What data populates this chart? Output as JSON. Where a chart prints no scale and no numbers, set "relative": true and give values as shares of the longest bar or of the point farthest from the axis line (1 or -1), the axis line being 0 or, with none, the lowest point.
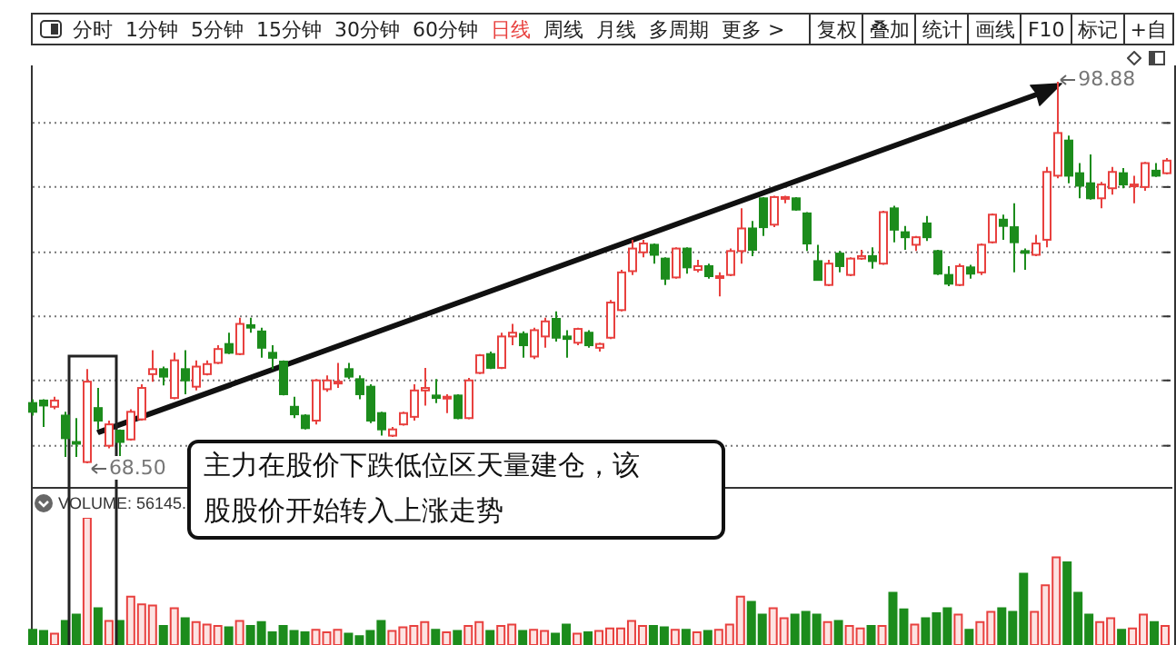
{
  "chart_data": [
    {
      "type": "other",
      "annotations": [
        "分时",
        "1分钟",
        "5分钟",
        "15分钟",
        "30分钟",
        "60分钟",
        "日线",
        "周线",
        "月线",
        "多周期",
        "更多 >",
        "复权",
        "叠加",
        "统计",
        "画线",
        "F10",
        "标记",
        "+自"
      ]
    },
    {
      "type": "candlestick",
      "grid": "y",
      "annotations": [
        "主力在股价下跌低位区天量建仓，该股股价开始转入上涨走势",
        "68.50",
        "98.88"
      ],
      "yticks": [
        {
          "value": 69.9,
          "label": null
        },
        {
          "value": 75.1,
          "label": null
        },
        {
          "value": 80.2,
          "label": null
        },
        {
          "value": 85.3,
          "label": null
        },
        {
          "value": 90.5,
          "label": null
        },
        {
          "value": 95.6,
          "label": null
        }
      ],
      "categories": [
        null,
        null,
        null,
        null,
        null,
        null,
        null,
        null,
        null,
        null,
        null,
        null,
        null,
        null,
        null,
        null,
        null,
        null,
        null,
        null,
        null,
        null,
        null,
        null,
        null,
        null,
        null,
        null,
        null,
        null,
        null,
        null,
        null,
        null,
        null,
        null,
        null,
        null,
        null,
        null,
        null,
        null,
        null,
        null,
        null,
        null,
        null,
        null,
        null,
        null,
        null,
        null,
        null,
        null,
        null,
        null,
        null,
        null,
        null,
        null,
        null,
        null,
        null,
        null,
        null,
        null,
        null,
        null,
        null,
        null,
        null,
        null,
        null,
        null,
        null,
        null,
        null,
        null,
        null,
        null,
        null,
        null,
        null,
        null,
        null,
        null,
        null,
        null,
        null,
        null,
        null,
        null,
        null,
        null,
        null,
        null,
        null,
        null,
        null,
        null,
        null,
        null,
        null,
        null,
        null
      ],
      "colors": [
        "#1c8c1c",
        "#1c8c1c",
        "#e8413f",
        "#1c8c1c",
        "#1c8c1c",
        "#e8413f",
        "#1c8c1c",
        "#e8413f",
        "#1c8c1c",
        "#e8413f",
        "#e8413f",
        "#e8413f",
        "#1c8c1c",
        "#e8413f",
        "#1c8c1c",
        "#e8413f",
        "#e8413f",
        "#e8413f",
        "#1c8c1c",
        "#e8413f",
        "#1c8c1c",
        "#1c8c1c",
        "#1c8c1c",
        "#1c8c1c",
        "#1c8c1c",
        "#1c8c1c",
        "#e8413f",
        "#e8413f",
        "#e8413f",
        "#1c8c1c",
        "#1c8c1c",
        "#1c8c1c",
        "#1c8c1c",
        "#e8413f",
        "#e8413f",
        "#e8413f",
        "#e8413f",
        "#1c8c1c",
        "#e8413f",
        "#1c8c1c",
        "#e8413f",
        "#e8413f",
        "#1c8c1c",
        "#e8413f",
        "#e8413f",
        "#1c8c1c",
        "#e8413f",
        "#e8413f",
        "#1c8c1c",
        "#1c8c1c",
        "#e8413f",
        "#1c8c1c",
        "#e8413f",
        "#e8413f",
        "#e8413f",
        "#e8413f",
        "#e8413f",
        "#1c8c1c",
        "#1c8c1c",
        "#e8413f",
        "#1c8c1c",
        "#e8413f",
        "#1c8c1c",
        "#e8413f",
        "#e8413f",
        "#e8413f",
        "#1c8c1c",
        "#1c8c1c",
        "#e8413f",
        "#e8413f",
        "#1c8c1c",
        "#1c8c1c",
        "#1c8c1c",
        "#e8413f",
        "#1c8c1c",
        "#e8413f",
        "#e8413f",
        "#1c8c1c",
        "#e8413f",
        "#1c8c1c",
        "#1c8c1c",
        "#e8413f",
        "#1c8c1c",
        "#1c8c1c",
        "#1c8c1c",
        "#e8413f",
        "#1c8c1c",
        "#e8413f",
        "#e8413f",
        "#1c8c1c",
        "#1c8c1c",
        "#1c8c1c",
        "#e8413f",
        "#e8413f",
        "#e8413f",
        "#1c8c1c",
        "#1c8c1c",
        "#1c8c1c",
        "#e8413f",
        "#e8413f",
        "#1c8c1c",
        "#e8413f",
        "#e8413f",
        "#1c8c1c",
        "#e8413f"
      ],
      "ohlc": [
        [
          73.3,
          73.6,
          72.3,
          72.6
        ],
        [
          73.5,
          73.6,
          71.4,
          73.1
        ],
        [
          73.0,
          73.8,
          72.8,
          73.5
        ],
        [
          72.3,
          72.6,
          69.0,
          70.5
        ],
        [
          70.2,
          72.1,
          69.0,
          70.1
        ],
        [
          68.6,
          76.0,
          68.5,
          75.0
        ],
        [
          72.9,
          74.5,
          71.2,
          71.9
        ],
        [
          69.9,
          71.9,
          69.7,
          71.6
        ],
        [
          71.1,
          71.2,
          68.7,
          70.2
        ],
        [
          70.4,
          72.8,
          70.3,
          72.6
        ],
        [
          72.0,
          74.8,
          71.9,
          74.5
        ],
        [
          75.6,
          77.5,
          75.0,
          76.0
        ],
        [
          76.0,
          76.2,
          74.7,
          75.4
        ],
        [
          73.7,
          77.3,
          73.6,
          76.7
        ],
        [
          76.0,
          77.5,
          74.0,
          75.1
        ],
        [
          74.6,
          76.7,
          74.3,
          76.2
        ],
        [
          75.6,
          76.7,
          75.5,
          76.4
        ],
        [
          76.5,
          77.9,
          76.4,
          77.6
        ],
        [
          78.0,
          78.9,
          77.2,
          77.3
        ],
        [
          77.2,
          80.1,
          77.1,
          79.6
        ],
        [
          79.5,
          80.1,
          78.9,
          79.3
        ],
        [
          79.0,
          79.3,
          76.9,
          77.7
        ],
        [
          77.3,
          77.9,
          76.0,
          76.9
        ],
        [
          76.6,
          76.7,
          73.9,
          74.0
        ],
        [
          73.0,
          73.8,
          72.1,
          72.4
        ],
        [
          72.3,
          72.4,
          71.2,
          71.3
        ],
        [
          71.9,
          75.2,
          71.6,
          75.1
        ],
        [
          74.4,
          75.5,
          74.2,
          75.1
        ],
        [
          74.9,
          76.5,
          74.5,
          75.0
        ],
        [
          76.0,
          76.5,
          75.2,
          75.4
        ],
        [
          75.2,
          75.5,
          73.6,
          74.0
        ],
        [
          74.6,
          74.8,
          71.7,
          71.9
        ],
        [
          72.5,
          72.6,
          70.7,
          71.2
        ],
        [
          70.7,
          71.4,
          70.6,
          71.2
        ],
        [
          71.6,
          72.6,
          71.5,
          72.5
        ],
        [
          72.2,
          74.8,
          71.9,
          74.3
        ],
        [
          74.3,
          76.1,
          73.1,
          74.5
        ],
        [
          73.9,
          75.2,
          73.3,
          73.7
        ],
        [
          73.7,
          74.0,
          72.5,
          73.8
        ],
        [
          73.9,
          74.0,
          72.0,
          72.1
        ],
        [
          72.1,
          75.3,
          72.0,
          75.1
        ],
        [
          75.7,
          77.2,
          75.6,
          77.1
        ],
        [
          77.2,
          77.4,
          76.0,
          76.1
        ],
        [
          76.1,
          78.9,
          76.0,
          78.6
        ],
        [
          78.6,
          79.6,
          77.9,
          78.9
        ],
        [
          78.8,
          79.0,
          76.9,
          77.9
        ],
        [
          77.0,
          79.3,
          76.8,
          79.1
        ],
        [
          78.6,
          80.1,
          77.7,
          79.8
        ],
        [
          80.0,
          80.6,
          78.2,
          78.5
        ],
        [
          78.6,
          79.1,
          76.9,
          78.4
        ],
        [
          78.1,
          79.3,
          77.9,
          79.2
        ],
        [
          78.9,
          79.1,
          77.7,
          77.9
        ],
        [
          77.7,
          78.1,
          77.4,
          78.0
        ],
        [
          78.5,
          81.5,
          78.4,
          81.3
        ],
        [
          80.7,
          83.9,
          80.6,
          83.7
        ],
        [
          83.8,
          86.3,
          83.5,
          85.6
        ],
        [
          85.3,
          86.3,
          84.9,
          86.0
        ],
        [
          85.9,
          86.0,
          84.4,
          85.1
        ],
        [
          84.8,
          84.9,
          82.7,
          83.2
        ],
        [
          83.3,
          85.7,
          83.2,
          85.6
        ],
        [
          85.6,
          85.7,
          83.6,
          84.1
        ],
        [
          83.9,
          84.7,
          83.7,
          84.2
        ],
        [
          84.2,
          84.4,
          83.2,
          83.4
        ],
        [
          83.3,
          83.7,
          81.8,
          83.4
        ],
        [
          83.5,
          85.6,
          83.4,
          85.4
        ],
        [
          85.4,
          88.8,
          84.4,
          87.2
        ],
        [
          87.2,
          87.8,
          85.0,
          85.5
        ],
        [
          89.6,
          89.7,
          86.6,
          87.3
        ],
        [
          87.5,
          89.8,
          87.3,
          89.7
        ],
        [
          89.6,
          89.8,
          89.2,
          89.7
        ],
        [
          89.6,
          89.7,
          88.6,
          88.7
        ],
        [
          88.4,
          88.5,
          85.4,
          86.0
        ],
        [
          84.6,
          85.9,
          83.1,
          83.1
        ],
        [
          82.7,
          84.7,
          82.6,
          84.4
        ],
        [
          85.2,
          85.4,
          83.7,
          84.2
        ],
        [
          83.5,
          84.9,
          83.4,
          84.8
        ],
        [
          84.8,
          85.5,
          84.7,
          85.0
        ],
        [
          85.0,
          85.7,
          84.0,
          84.6
        ],
        [
          84.4,
          88.6,
          84.3,
          88.5
        ],
        [
          88.8,
          89.0,
          86.1,
          87.1
        ],
        [
          86.9,
          87.4,
          85.5,
          86.5
        ],
        [
          85.9,
          86.6,
          85.4,
          86.5
        ],
        [
          87.6,
          88.2,
          86.2,
          86.5
        ],
        [
          85.4,
          85.5,
          83.5,
          83.6
        ],
        [
          83.5,
          84.2,
          82.6,
          82.8
        ],
        [
          82.7,
          84.4,
          82.6,
          84.2
        ],
        [
          84.1,
          84.3,
          83.2,
          83.6
        ],
        [
          83.7,
          86.0,
          83.5,
          85.9
        ],
        [
          86.1,
          88.4,
          86.0,
          88.3
        ],
        [
          87.9,
          88.3,
          86.3,
          87.4
        ],
        [
          87.3,
          89.2,
          83.7,
          86.1
        ],
        [
          85.4,
          85.6,
          83.9,
          85.3
        ],
        [
          85.1,
          86.7,
          85.0,
          86.0
        ],
        [
          86.3,
          92.1,
          85.7,
          91.7
        ],
        [
          91.4,
          98.88,
          91.2,
          94.8
        ],
        [
          94.2,
          94.6,
          90.8,
          91.4
        ],
        [
          91.6,
          92.4,
          89.6,
          90.6
        ],
        [
          90.8,
          93.1,
          89.5,
          89.6
        ],
        [
          89.6,
          90.9,
          88.8,
          90.7
        ],
        [
          90.4,
          92.1,
          89.9,
          91.7
        ],
        [
          91.6,
          92.0,
          90.4,
          90.7
        ],
        [
          90.6,
          91.4,
          89.2,
          90.7
        ],
        [
          90.5,
          92.5,
          90.2,
          92.4
        ],
        [
          91.8,
          92.4,
          91.3,
          91.4
        ],
        [
          91.6,
          92.8,
          91.5,
          92.6
        ]
      ]
    },
    {
      "type": "bar",
      "relative": true,
      "annotations": [
        "VOLUME: 56145."
      ],
      "categories": [
        null,
        null,
        null,
        null,
        null,
        null,
        null,
        null,
        null,
        null,
        null,
        null,
        null,
        null,
        null,
        null,
        null,
        null,
        null,
        null,
        null,
        null,
        null,
        null,
        null,
        null,
        null,
        null,
        null,
        null,
        null,
        null,
        null,
        null,
        null,
        null,
        null,
        null,
        null,
        null,
        null,
        null,
        null,
        null,
        null,
        null,
        null,
        null,
        null,
        null,
        null,
        null,
        null,
        null,
        null,
        null,
        null,
        null,
        null,
        null,
        null,
        null,
        null,
        null,
        null,
        null,
        null,
        null,
        null,
        null,
        null,
        null,
        null,
        null,
        null,
        null,
        null,
        null,
        null,
        null,
        null,
        null,
        null,
        null,
        null,
        null,
        null,
        null,
        null,
        null,
        null,
        null,
        null,
        null,
        null,
        null,
        null,
        null,
        null,
        null,
        null,
        null,
        null,
        null,
        null
      ],
      "colors": [
        "#1c8c1c",
        "#1c8c1c",
        "#e8413f",
        "#1c8c1c",
        "#1c8c1c",
        "#e8413f",
        "#1c8c1c",
        "#e8413f",
        "#1c8c1c",
        "#e8413f",
        "#e8413f",
        "#e8413f",
        "#1c8c1c",
        "#e8413f",
        "#1c8c1c",
        "#e8413f",
        "#e8413f",
        "#e8413f",
        "#1c8c1c",
        "#e8413f",
        "#1c8c1c",
        "#1c8c1c",
        "#1c8c1c",
        "#1c8c1c",
        "#1c8c1c",
        "#1c8c1c",
        "#e8413f",
        "#e8413f",
        "#e8413f",
        "#1c8c1c",
        "#1c8c1c",
        "#1c8c1c",
        "#1c8c1c",
        "#e8413f",
        "#e8413f",
        "#e8413f",
        "#e8413f",
        "#1c8c1c",
        "#e8413f",
        "#1c8c1c",
        "#e8413f",
        "#e8413f",
        "#1c8c1c",
        "#e8413f",
        "#e8413f",
        "#1c8c1c",
        "#e8413f",
        "#e8413f",
        "#1c8c1c",
        "#1c8c1c",
        "#e8413f",
        "#1c8c1c",
        "#e8413f",
        "#e8413f",
        "#e8413f",
        "#e8413f",
        "#e8413f",
        "#1c8c1c",
        "#1c8c1c",
        "#e8413f",
        "#1c8c1c",
        "#e8413f",
        "#1c8c1c",
        "#e8413f",
        "#e8413f",
        "#e8413f",
        "#1c8c1c",
        "#1c8c1c",
        "#e8413f",
        "#e8413f",
        "#1c8c1c",
        "#1c8c1c",
        "#1c8c1c",
        "#e8413f",
        "#1c8c1c",
        "#e8413f",
        "#e8413f",
        "#1c8c1c",
        "#e8413f",
        "#1c8c1c",
        "#1c8c1c",
        "#e8413f",
        "#1c8c1c",
        "#1c8c1c",
        "#1c8c1c",
        "#e8413f",
        "#1c8c1c",
        "#e8413f",
        "#e8413f",
        "#1c8c1c",
        "#1c8c1c",
        "#1c8c1c",
        "#e8413f",
        "#e8413f",
        "#e8413f",
        "#1c8c1c",
        "#1c8c1c",
        "#1c8c1c",
        "#e8413f",
        "#e8413f",
        "#1c8c1c",
        "#e8413f",
        "#e8413f",
        "#1c8c1c",
        "#e8413f"
      ],
      "values": [
        0.12,
        0.11,
        0.09,
        0.19,
        0.24,
        1,
        0.29,
        0.19,
        0.19,
        0.38,
        0.32,
        0.31,
        0.15,
        0.29,
        0.21,
        0.18,
        0.16,
        0.15,
        0.14,
        0.19,
        0.15,
        0.18,
        0.1,
        0.15,
        0.11,
        0.1,
        0.12,
        0.1,
        0.12,
        0.09,
        0.07,
        0.11,
        0.19,
        0.11,
        0.14,
        0.15,
        0.18,
        0.12,
        0.1,
        0.11,
        0.15,
        0.18,
        0.11,
        0.15,
        0.16,
        0.11,
        0.12,
        0.11,
        0.09,
        0.16,
        0.09,
        0.1,
        0.11,
        0.13,
        0.13,
        0.19,
        0.15,
        0.15,
        0.14,
        0.12,
        0.12,
        0.1,
        0.11,
        0.12,
        0.16,
        0.38,
        0.34,
        0.24,
        0.29,
        0.21,
        0.24,
        0.26,
        0.24,
        0.18,
        0.19,
        0.15,
        0.13,
        0.15,
        0.15,
        0.41,
        0.28,
        0.16,
        0.21,
        0.25,
        0.29,
        0.24,
        0.12,
        0.18,
        0.26,
        0.29,
        0.26,
        0.56,
        0.26,
        0.47,
        0.69,
        0.65,
        0.41,
        0.24,
        0.18,
        0.21,
        0.12,
        0.13,
        0.24,
        0.18,
        0.15
      ]
    }
  ]
}
